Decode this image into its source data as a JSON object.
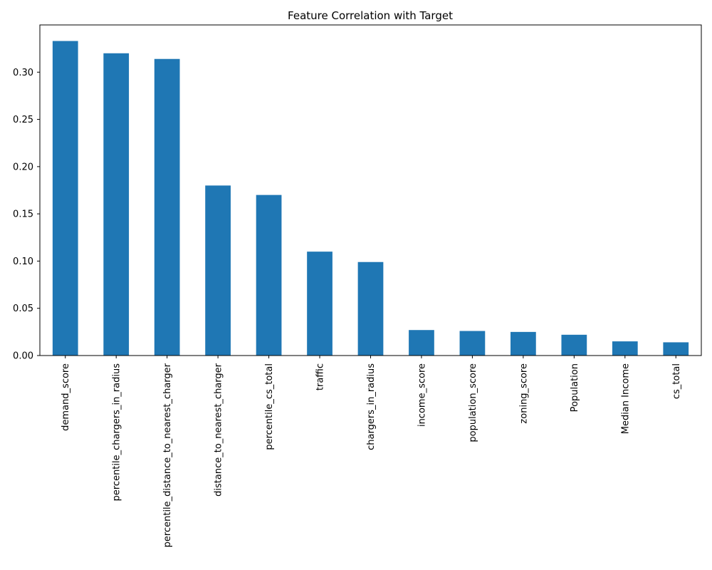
{
  "chart_data": {
    "type": "bar",
    "title": "Feature Correlation with Target",
    "xlabel": "",
    "ylabel": "",
    "categories": [
      "demand_score",
      "percentile_chargers_in_radius",
      "percentile_distance_to_nearest_charger",
      "distance_to_nearest_charger",
      "percentile_cs_total",
      "traffic",
      "chargers_in_radius",
      "income_score",
      "population_score",
      "zoning_score",
      "Population",
      "Median Income",
      "cs_total"
    ],
    "values": [
      0.333,
      0.32,
      0.314,
      0.18,
      0.17,
      0.11,
      0.099,
      0.027,
      0.026,
      0.025,
      0.022,
      0.015,
      0.014
    ],
    "ylim": [
      0,
      0.35
    ],
    "yticks": [
      0.0,
      0.05,
      0.1,
      0.15,
      0.2,
      0.25,
      0.3
    ],
    "ytick_labels": [
      "0.00",
      "0.05",
      "0.10",
      "0.15",
      "0.20",
      "0.25",
      "0.30"
    ],
    "bar_color": "#1f77b4",
    "grid": false,
    "legend": "none"
  }
}
